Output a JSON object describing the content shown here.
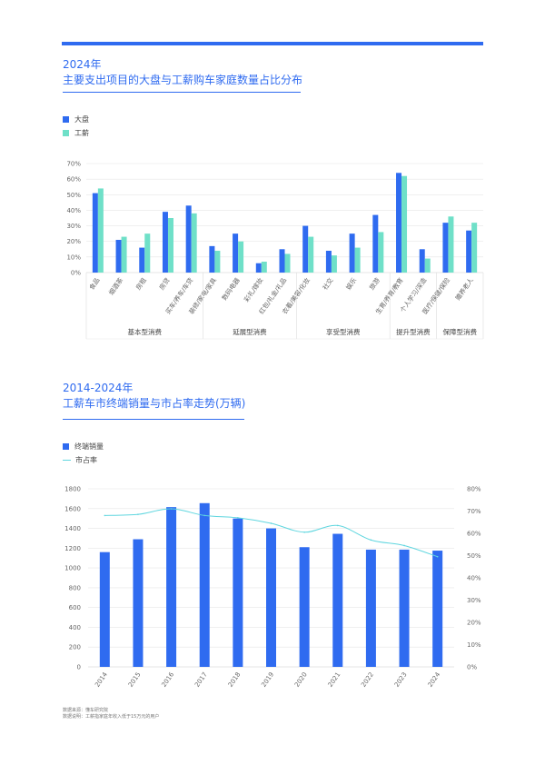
{
  "colors": {
    "accent": "#2f6bf0",
    "series_a": "#2f6bf0",
    "series_b": "#6fe0c8",
    "line": "#5fd6df",
    "grid": "#e6e6e6",
    "axis_text": "#666666"
  },
  "chart_data": [
    {
      "type": "bar",
      "title_year": "2024年",
      "title": "主要支出项目的大盘与工薪购车家庭数量占比分布",
      "categories": [
        "食品",
        "烟酒茶",
        "房租",
        "房贷",
        "买车/养车/车贷",
        "装修/家电/家具",
        "数码电器",
        "彩礼/嫁妆",
        "红包/礼金/礼品",
        "衣着/美容/化妆",
        "社交",
        "娱乐",
        "旅游",
        "生育/养育/教育",
        "个人学习/深造",
        "医疗/保健/保险",
        "赡养老人"
      ],
      "series": [
        {
          "name": "大盘",
          "values": [
            51,
            21,
            16,
            39,
            43,
            17,
            25,
            6,
            15,
            30,
            14,
            25,
            37,
            64,
            15,
            32,
            27
          ]
        },
        {
          "name": "工薪",
          "values": [
            54,
            23,
            25,
            35,
            38,
            14,
            20,
            7,
            12,
            23,
            11,
            16,
            26,
            62,
            9,
            36,
            32
          ]
        }
      ],
      "y_ticks": [
        "0%",
        "10%",
        "20%",
        "30%",
        "40%",
        "50%",
        "60%",
        "70%"
      ],
      "ylim": [
        0,
        70
      ],
      "groups": [
        {
          "label": "基本型消费",
          "count": 5
        },
        {
          "label": "延展型消费",
          "count": 4
        },
        {
          "label": "享受型消费",
          "count": 4
        },
        {
          "label": "提升型消费",
          "count": 2
        },
        {
          "label": "保障型消费",
          "count": 2
        }
      ],
      "legend_position": "top-left"
    },
    {
      "type": "bar",
      "title_year": "2014-2024年",
      "title": "工薪车市终端销量与市占率走势(万辆)",
      "categories": [
        "2014",
        "2015",
        "2016",
        "2017",
        "2018",
        "2019",
        "2020",
        "2021",
        "2022",
        "2023",
        "2024"
      ],
      "series": [
        {
          "name": "终端销量",
          "type": "bar",
          "axis": "left",
          "values": [
            1160,
            1290,
            1615,
            1655,
            1500,
            1400,
            1210,
            1345,
            1185,
            1185,
            1175
          ]
        },
        {
          "name": "市占率",
          "type": "line",
          "axis": "right",
          "values": [
            68,
            68.5,
            71,
            68,
            67,
            64.5,
            60.5,
            63.5,
            57,
            54.5,
            49.5
          ]
        }
      ],
      "y_ticks": [
        "0",
        "200",
        "400",
        "600",
        "800",
        "1000",
        "1200",
        "1400",
        "1600",
        "1800"
      ],
      "y2_ticks": [
        "0%",
        "10%",
        "20%",
        "30%",
        "40%",
        "50%",
        "60%",
        "70%",
        "80%"
      ],
      "ylim": [
        0,
        1800
      ],
      "y2lim": [
        0,
        80
      ],
      "legend_position": "top-left"
    }
  ],
  "footnote": {
    "source": "数据来源：懂车研究院",
    "note": "数据说明：工薪指家庭年收入低于15万元的用户"
  }
}
